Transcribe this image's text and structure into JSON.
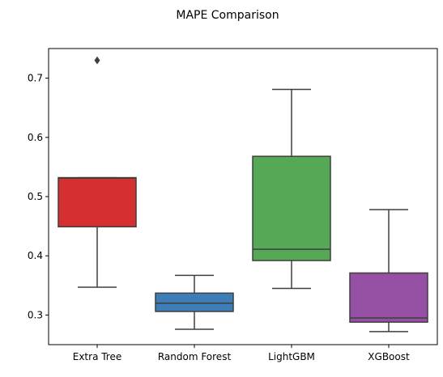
{
  "chart_data": {
    "type": "box",
    "title": "MAPE Comparison",
    "xlabel": "",
    "ylabel": "",
    "ylim": [
      0.25,
      0.75
    ],
    "yticks": [
      0.3,
      0.4,
      0.5,
      0.6,
      0.7
    ],
    "ytick_labels": [
      "0.3",
      "0.4",
      "0.5",
      "0.6",
      "0.7"
    ],
    "categories": [
      "Extra Tree",
      "Random Forest",
      "LightGBM",
      "XGBoost"
    ],
    "boxes": [
      {
        "name": "Extra Tree",
        "color": "#d62f2f",
        "whisker_low": 0.347,
        "q1": 0.449,
        "median": 0.531,
        "q3": 0.532,
        "whisker_high": 0.532,
        "outliers": [
          0.73
        ]
      },
      {
        "name": "Random Forest",
        "color": "#3d7eb8",
        "whisker_low": 0.276,
        "q1": 0.306,
        "median": 0.32,
        "q3": 0.337,
        "whisker_high": 0.367,
        "outliers": []
      },
      {
        "name": "LightGBM",
        "color": "#55a854",
        "whisker_low": 0.345,
        "q1": 0.392,
        "median": 0.411,
        "q3": 0.568,
        "whisker_high": 0.681,
        "outliers": []
      },
      {
        "name": "XGBoost",
        "color": "#9550a3",
        "whisker_low": 0.272,
        "q1": 0.288,
        "median": 0.295,
        "q3": 0.371,
        "whisker_high": 0.478,
        "outliers": []
      }
    ],
    "grid": false,
    "line_color": "#3f3f3f"
  }
}
